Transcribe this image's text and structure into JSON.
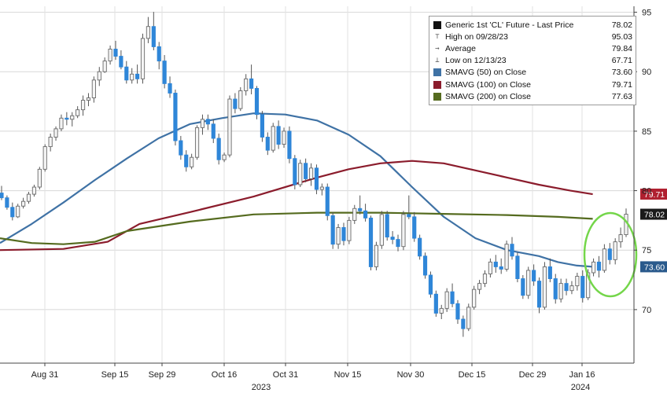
{
  "chart_data": {
    "type": "candlestick",
    "ylim": [
      65.5,
      95.5
    ],
    "y_ticks": [
      70,
      75,
      80,
      85,
      90,
      95
    ],
    "x_ticks": [
      "Aug 31",
      "Sep 15",
      "Sep 29",
      "Oct 16",
      "Oct 31",
      "Nov 15",
      "Nov 30",
      "Dec 15",
      "Dec 29",
      "Jan 16"
    ],
    "year_labels": [
      "2023",
      "2024"
    ],
    "grid": true,
    "legend_placement": "top-right",
    "legend": [
      {
        "key": "box-black",
        "label": "Generic 1st 'CL' Future - Last Price",
        "value": "78.02"
      },
      {
        "key": "high-glyph",
        "label": "High on 09/28/23",
        "value": "95.03"
      },
      {
        "key": "avg-glyph",
        "label": "Average",
        "value": "79.84"
      },
      {
        "key": "low-glyph",
        "label": "Low on 12/13/23",
        "value": "67.71"
      },
      {
        "key": "box-blue",
        "label": "SMAVG (50) on Close",
        "value": "73.60"
      },
      {
        "key": "box-red",
        "label": "SMAVG (100) on Close",
        "value": "79.71"
      },
      {
        "key": "box-green",
        "label": "SMAVG (200) on Close",
        "value": "77.63"
      }
    ],
    "value_tags": [
      {
        "text": "79.71",
        "value": 79.71,
        "color": "#b02030"
      },
      {
        "text": "78.02",
        "value": 78.02,
        "color": "#1a1a1a"
      },
      {
        "text": "73.60",
        "value": 73.6,
        "color": "#2a5a8c"
      }
    ],
    "series": [
      {
        "name": "SMAVG (50) on Close",
        "color": "#3f72a5",
        "points": [
          [
            0,
            75.6
          ],
          [
            0.05,
            77.2
          ],
          [
            0.1,
            79.0
          ],
          [
            0.15,
            80.9
          ],
          [
            0.2,
            82.7
          ],
          [
            0.25,
            84.4
          ],
          [
            0.3,
            85.6
          ],
          [
            0.35,
            86.1
          ],
          [
            0.4,
            86.5
          ],
          [
            0.45,
            86.4
          ],
          [
            0.5,
            85.9
          ],
          [
            0.55,
            84.7
          ],
          [
            0.6,
            82.9
          ],
          [
            0.65,
            80.3
          ],
          [
            0.7,
            77.8
          ],
          [
            0.75,
            76.0
          ],
          [
            0.8,
            75.0
          ],
          [
            0.85,
            74.5
          ],
          [
            0.88,
            74.0
          ],
          [
            0.91,
            73.7
          ],
          [
            0.935,
            73.6
          ]
        ]
      },
      {
        "name": "SMAVG (100) on Close",
        "color": "#8b1c2c",
        "points": [
          [
            0,
            75.0
          ],
          [
            0.1,
            75.1
          ],
          [
            0.17,
            75.7
          ],
          [
            0.22,
            77.2
          ],
          [
            0.3,
            78.2
          ],
          [
            0.4,
            79.5
          ],
          [
            0.5,
            81.1
          ],
          [
            0.55,
            81.8
          ],
          [
            0.6,
            82.3
          ],
          [
            0.65,
            82.5
          ],
          [
            0.7,
            82.3
          ],
          [
            0.75,
            81.7
          ],
          [
            0.8,
            81.1
          ],
          [
            0.85,
            80.5
          ],
          [
            0.9,
            80.0
          ],
          [
            0.935,
            79.7
          ]
        ]
      },
      {
        "name": "SMAVG (200) on Close",
        "color": "#556b1f",
        "points": [
          [
            0,
            76.0
          ],
          [
            0.05,
            75.6
          ],
          [
            0.1,
            75.5
          ],
          [
            0.15,
            75.7
          ],
          [
            0.2,
            76.6
          ],
          [
            0.3,
            77.4
          ],
          [
            0.4,
            78.0
          ],
          [
            0.5,
            78.15
          ],
          [
            0.6,
            78.15
          ],
          [
            0.7,
            78.05
          ],
          [
            0.8,
            77.95
          ],
          [
            0.88,
            77.8
          ],
          [
            0.935,
            77.63
          ]
        ]
      }
    ],
    "candles": [
      [
        0,
        79.8,
        80.4,
        79.2,
        79.4
      ],
      [
        1,
        79.4,
        79.6,
        78.4,
        78.6
      ],
      [
        2,
        78.6,
        79.0,
        77.5,
        77.8
      ],
      [
        3,
        77.8,
        78.9,
        77.7,
        78.7
      ],
      [
        4,
        78.7,
        79.4,
        78.5,
        79.1
      ],
      [
        5,
        79.1,
        79.9,
        78.9,
        79.7
      ],
      [
        6,
        79.7,
        80.5,
        79.5,
        80.3
      ],
      [
        7,
        80.3,
        82.0,
        80.1,
        81.8
      ],
      [
        8,
        81.8,
        83.9,
        81.6,
        83.7
      ],
      [
        9,
        83.7,
        84.8,
        83.3,
        84.5
      ],
      [
        10,
        84.5,
        85.4,
        84.2,
        85.2
      ],
      [
        11,
        85.2,
        86.4,
        85.0,
        86.1
      ],
      [
        12,
        86.1,
        86.6,
        85.5,
        86.0
      ],
      [
        13,
        86.0,
        86.6,
        85.4,
        86.3
      ],
      [
        14,
        86.3,
        87.1,
        86.1,
        86.8
      ],
      [
        15,
        86.8,
        88.0,
        86.3,
        87.6
      ],
      [
        16,
        87.6,
        88.2,
        87.1,
        87.8
      ],
      [
        17,
        87.8,
        89.6,
        87.4,
        89.3
      ],
      [
        18,
        89.3,
        90.4,
        88.8,
        90.0
      ],
      [
        19,
        90.0,
        91.2,
        89.9,
        90.9
      ],
      [
        20,
        90.9,
        92.2,
        90.6,
        91.9
      ],
      [
        21,
        91.9,
        92.6,
        91.0,
        91.3
      ],
      [
        22,
        91.3,
        91.8,
        90.2,
        90.4
      ],
      [
        23,
        90.4,
        90.9,
        89.0,
        89.3
      ],
      [
        24,
        89.3,
        90.3,
        89.0,
        89.8
      ],
      [
        25,
        89.8,
        90.6,
        89.0,
        89.4
      ],
      [
        26,
        89.4,
        93.2,
        89.0,
        92.8
      ],
      [
        27,
        92.8,
        94.6,
        92.4,
        93.8
      ],
      [
        28,
        93.8,
        95.03,
        91.8,
        92.1
      ],
      [
        29,
        92.1,
        92.5,
        90.2,
        90.9
      ],
      [
        30,
        90.9,
        91.4,
        88.6,
        89.0
      ],
      [
        31,
        89.0,
        89.6,
        87.8,
        88.2
      ],
      [
        32,
        88.2,
        88.5,
        83.8,
        84.2
      ],
      [
        33,
        84.2,
        84.6,
        82.6,
        83.0
      ],
      [
        34,
        83.0,
        83.4,
        81.6,
        82.0
      ],
      [
        35,
        82.0,
        83.1,
        81.8,
        82.8
      ],
      [
        36,
        82.8,
        85.5,
        82.6,
        85.3
      ],
      [
        37,
        85.3,
        86.4,
        84.7,
        86.0
      ],
      [
        38,
        86.0,
        86.4,
        85.1,
        85.6
      ],
      [
        39,
        85.6,
        86.0,
        84.0,
        84.4
      ],
      [
        40,
        84.4,
        84.8,
        82.2,
        82.6
      ],
      [
        41,
        82.6,
        83.2,
        82.4,
        83.0
      ],
      [
        42,
        83.0,
        88.0,
        82.8,
        87.7
      ],
      [
        43,
        87.7,
        88.2,
        86.5,
        86.9
      ],
      [
        44,
        86.9,
        88.7,
        86.7,
        88.4
      ],
      [
        45,
        88.4,
        89.8,
        88.0,
        89.4
      ],
      [
        46,
        89.4,
        90.6,
        88.1,
        88.6
      ],
      [
        47,
        88.6,
        88.8,
        86.0,
        86.4
      ],
      [
        48,
        86.4,
        86.7,
        84.1,
        84.5
      ],
      [
        49,
        84.5,
        84.9,
        83.0,
        83.4
      ],
      [
        50,
        83.4,
        85.7,
        83.2,
        85.4
      ],
      [
        51,
        85.4,
        85.9,
        83.5,
        83.9
      ],
      [
        52,
        83.9,
        85.3,
        83.6,
        85.0
      ],
      [
        53,
        85.0,
        85.4,
        82.3,
        82.7
      ],
      [
        54,
        82.7,
        83.0,
        80.1,
        80.5
      ],
      [
        55,
        80.5,
        82.6,
        80.3,
        82.3
      ],
      [
        56,
        82.3,
        82.7,
        80.7,
        81.0
      ],
      [
        57,
        81.0,
        82.3,
        80.4,
        81.9
      ],
      [
        58,
        81.9,
        82.2,
        79.7,
        80.1
      ],
      [
        59,
        80.1,
        80.6,
        79.6,
        80.3
      ],
      [
        60,
        80.3,
        80.6,
        77.5,
        77.9
      ],
      [
        61,
        77.9,
        78.2,
        75.1,
        75.5
      ],
      [
        62,
        75.5,
        77.2,
        75.1,
        76.9
      ],
      [
        63,
        76.9,
        77.3,
        75.4,
        75.8
      ],
      [
        64,
        75.8,
        77.8,
        75.5,
        77.5
      ],
      [
        65,
        77.5,
        78.8,
        77.2,
        78.5
      ],
      [
        66,
        78.5,
        79.6,
        78.0,
        78.3
      ],
      [
        67,
        78.3,
        78.9,
        77.4,
        77.7
      ],
      [
        68,
        77.7,
        77.9,
        73.3,
        73.6
      ],
      [
        69,
        73.6,
        75.7,
        73.3,
        75.4
      ],
      [
        70,
        75.4,
        78.3,
        75.1,
        78.0
      ],
      [
        71,
        78.0,
        78.3,
        75.8,
        76.1
      ],
      [
        72,
        76.1,
        76.6,
        75.5,
        75.9
      ],
      [
        73,
        75.9,
        76.3,
        74.9,
        75.3
      ],
      [
        74,
        75.3,
        78.3,
        75.0,
        78.0
      ],
      [
        75,
        78.0,
        79.6,
        77.6,
        77.8
      ],
      [
        76,
        77.8,
        78.2,
        75.7,
        76.0
      ],
      [
        77,
        76.0,
        76.3,
        74.2,
        74.5
      ],
      [
        78,
        74.5,
        74.8,
        72.6,
        72.9
      ],
      [
        79,
        72.9,
        73.2,
        71.0,
        71.3
      ],
      [
        80,
        71.3,
        71.6,
        69.4,
        69.7
      ],
      [
        81,
        69.7,
        70.4,
        69.2,
        70.1
      ],
      [
        82,
        70.1,
        71.8,
        69.8,
        71.5
      ],
      [
        83,
        71.5,
        72.2,
        70.2,
        70.5
      ],
      [
        84,
        70.5,
        70.8,
        68.8,
        69.2
      ],
      [
        85,
        69.2,
        69.5,
        67.71,
        68.4
      ],
      [
        86,
        68.4,
        70.5,
        68.2,
        70.2
      ],
      [
        87,
        70.2,
        72.0,
        70.0,
        71.7
      ],
      [
        88,
        71.7,
        72.5,
        71.3,
        72.2
      ],
      [
        89,
        72.2,
        73.3,
        71.9,
        73.0
      ],
      [
        90,
        73.0,
        74.3,
        72.7,
        74.0
      ],
      [
        91,
        74.0,
        74.6,
        73.1,
        73.6
      ],
      [
        92,
        73.6,
        74.3,
        73.0,
        73.4
      ],
      [
        93,
        73.4,
        75.8,
        73.2,
        75.5
      ],
      [
        94,
        75.5,
        76.1,
        74.2,
        74.5
      ],
      [
        95,
        74.5,
        74.8,
        72.3,
        72.6
      ],
      [
        96,
        72.6,
        72.9,
        70.9,
        71.2
      ],
      [
        97,
        71.2,
        73.6,
        70.9,
        73.3
      ],
      [
        98,
        73.3,
        73.8,
        72.0,
        72.4
      ],
      [
        99,
        72.4,
        72.7,
        69.7,
        70.2
      ],
      [
        100,
        70.2,
        74.0,
        70.0,
        73.6
      ],
      [
        101,
        73.6,
        74.3,
        72.3,
        72.6
      ],
      [
        102,
        72.6,
        73.0,
        70.5,
        70.9
      ],
      [
        103,
        70.9,
        72.6,
        70.6,
        72.2
      ],
      [
        104,
        72.2,
        72.6,
        71.2,
        71.6
      ],
      [
        105,
        71.6,
        72.4,
        71.3,
        72.0
      ],
      [
        106,
        72.0,
        73.1,
        71.6,
        72.8
      ],
      [
        107,
        72.8,
        73.3,
        70.6,
        71.0
      ],
      [
        108,
        71.0,
        73.4,
        70.8,
        73.1
      ],
      [
        109,
        73.1,
        74.3,
        72.8,
        74.0
      ],
      [
        110,
        74.0,
        74.5,
        72.7,
        73.3
      ],
      [
        111,
        73.3,
        75.5,
        73.1,
        75.1
      ],
      [
        112,
        75.1,
        75.6,
        73.8,
        74.2
      ],
      [
        113,
        74.2,
        76.0,
        73.8,
        75.7
      ],
      [
        114,
        75.7,
        76.9,
        75.2,
        76.3
      ],
      [
        115,
        76.3,
        78.5,
        76.1,
        78.02
      ]
    ]
  }
}
